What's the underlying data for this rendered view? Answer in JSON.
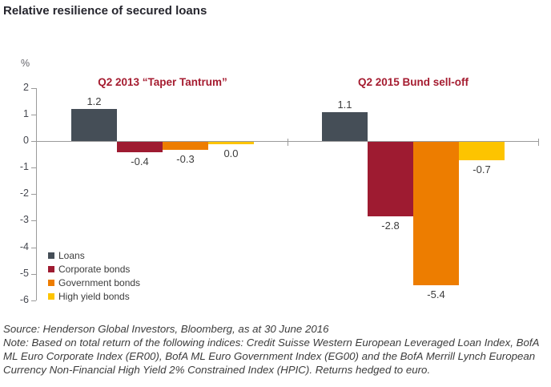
{
  "page": {
    "title": "Relative resilience of secured loans"
  },
  "chart_data": {
    "type": "bar",
    "title": "Relative resilience of secured loans",
    "ylabel": "%",
    "categories": [
      "Q2 2013 “Taper Tantrum”",
      "Q2 2015 Bund sell-off"
    ],
    "series": [
      {
        "name": "Loans",
        "color": "#454e57",
        "values": [
          1.2,
          1.1
        ],
        "value_labels": [
          "1.2",
          "1.1"
        ]
      },
      {
        "name": "Corporate bonds",
        "color": "#9e1b31",
        "values": [
          -0.4,
          -2.8
        ],
        "value_labels": [
          "-0.4",
          "-2.8"
        ]
      },
      {
        "name": "Government bonds",
        "color": "#ed7d00",
        "values": [
          -0.3,
          -5.4
        ],
        "value_labels": [
          "-0.3",
          "-5.4"
        ]
      },
      {
        "name": "High yield bonds",
        "color": "#fdc400",
        "values": [
          0.0,
          -0.7
        ],
        "value_labels": [
          "0.0",
          "-0.7"
        ]
      }
    ],
    "y_axis": {
      "min": -6,
      "max": 2,
      "step": 1,
      "tick_labels": [
        "2",
        "1",
        "0",
        "-1",
        "-2",
        "-3",
        "-4",
        "-5",
        "-6"
      ]
    },
    "grid": false,
    "legend_position": "bottom-left",
    "group_title_color": "#a51c30",
    "axis_color": "#9b9b9b"
  },
  "footer": {
    "source": "Source: Henderson Global Investors, Bloomberg, as at 30 June 2016",
    "note": "Note: Based on total return of the following indices: Credit Suisse Western European Leveraged Loan Index, BofA ML Euro Corporate Index (ER00), BofA ML Euro Government Index (EG00) and the BofA Merrill Lynch European Currency Non-Financial High Yield 2% Constrained Index (HPIC). Returns hedged to euro."
  }
}
